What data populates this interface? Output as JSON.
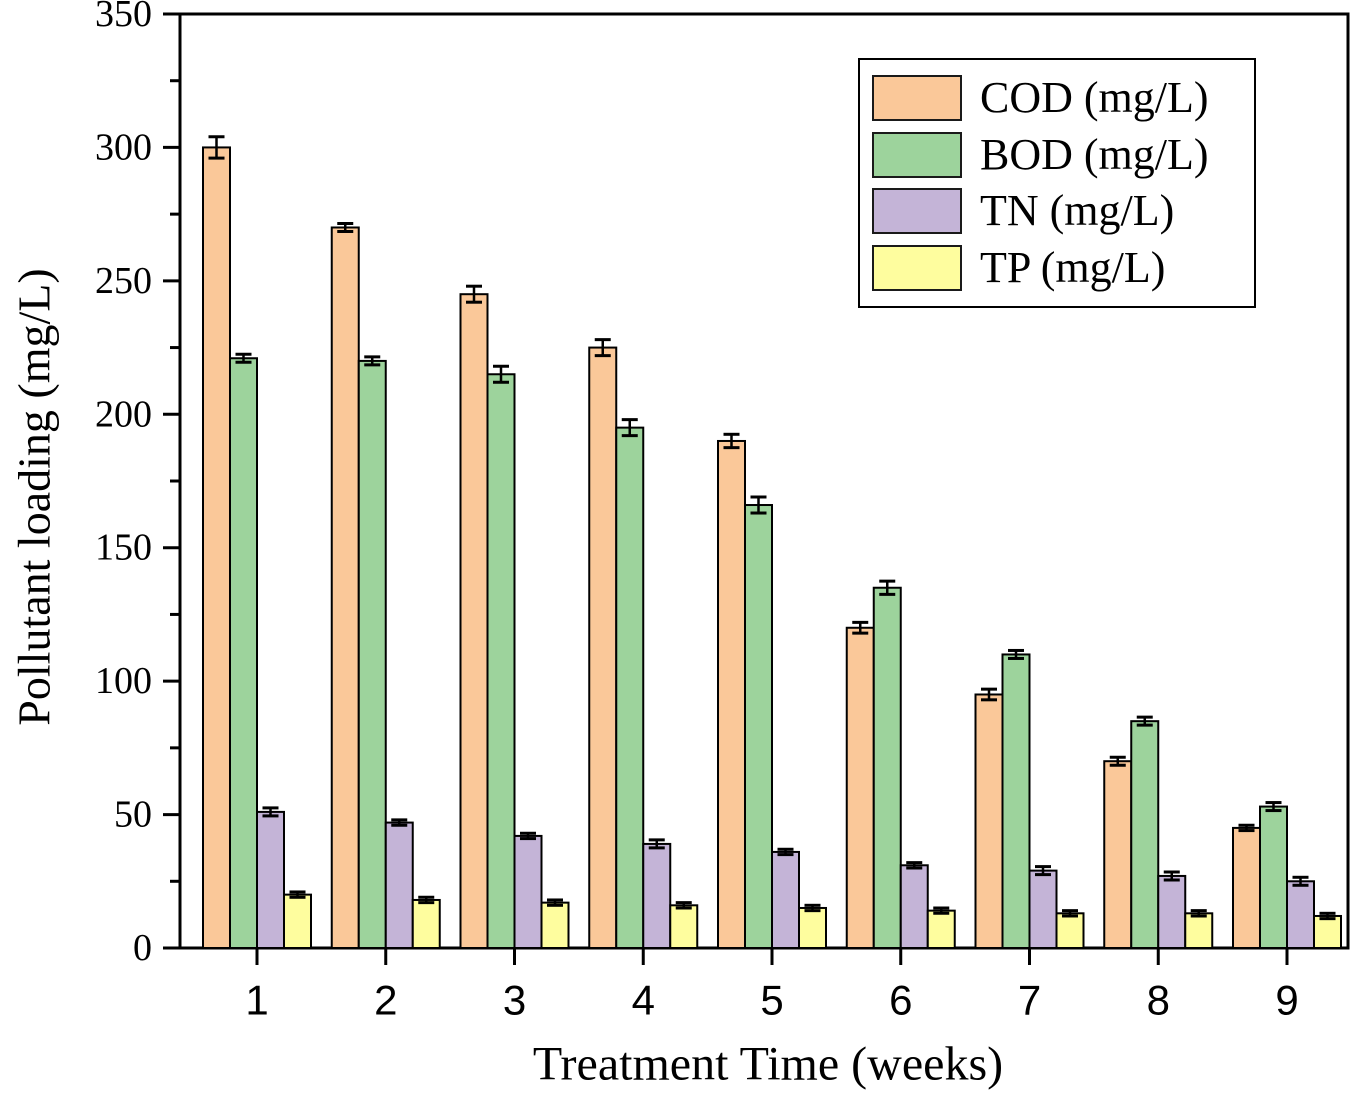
{
  "figure": {
    "background_color": "#ffffff",
    "frame_color": "#000000"
  },
  "chart_data": {
    "type": "bar",
    "title": "",
    "xlabel": "Treatment Time (weeks)",
    "ylabel": "Pollutant loading (mg/L)",
    "categories": [
      "1",
      "2",
      "3",
      "4",
      "5",
      "6",
      "7",
      "8",
      "9"
    ],
    "ylim": [
      0,
      350
    ],
    "y_major_tick_step": 50,
    "y_minor_tick_step": 25,
    "y_tick_labels": [
      "0",
      "50",
      "100",
      "150",
      "200",
      "250",
      "300",
      "350"
    ],
    "grid": false,
    "legend_position": "top-right",
    "error_bars": true,
    "bar_outline_color": "#000000",
    "error_bar_color": "#000000",
    "series": [
      {
        "name": "COD (mg/L)",
        "color": "#FAC899",
        "values": [
          300,
          270,
          245,
          225,
          190,
          120,
          95,
          70,
          45
        ],
        "errors": [
          4,
          1.5,
          3,
          3,
          2.5,
          2,
          2,
          1.5,
          1
        ]
      },
      {
        "name": "BOD (mg/L)",
        "color": "#9DD39C",
        "values": [
          221,
          220,
          215,
          195,
          166,
          135,
          110,
          85,
          53
        ],
        "errors": [
          1.5,
          1.5,
          3,
          3,
          3,
          2.5,
          1.5,
          1.5,
          1.5
        ]
      },
      {
        "name": "TN (mg/L)",
        "color": "#C4B4D7",
        "values": [
          51,
          47,
          42,
          39,
          36,
          31,
          29,
          27,
          25
        ],
        "errors": [
          1.5,
          1,
          1,
          1.5,
          1,
          1,
          1.5,
          1.5,
          1.5
        ]
      },
      {
        "name": "TP (mg/L)",
        "color": "#FEFD9E",
        "values": [
          20,
          18,
          17,
          16,
          15,
          14,
          13,
          13,
          12
        ],
        "errors": [
          1,
          1,
          1,
          1,
          1,
          1,
          1,
          1,
          1
        ]
      }
    ]
  }
}
